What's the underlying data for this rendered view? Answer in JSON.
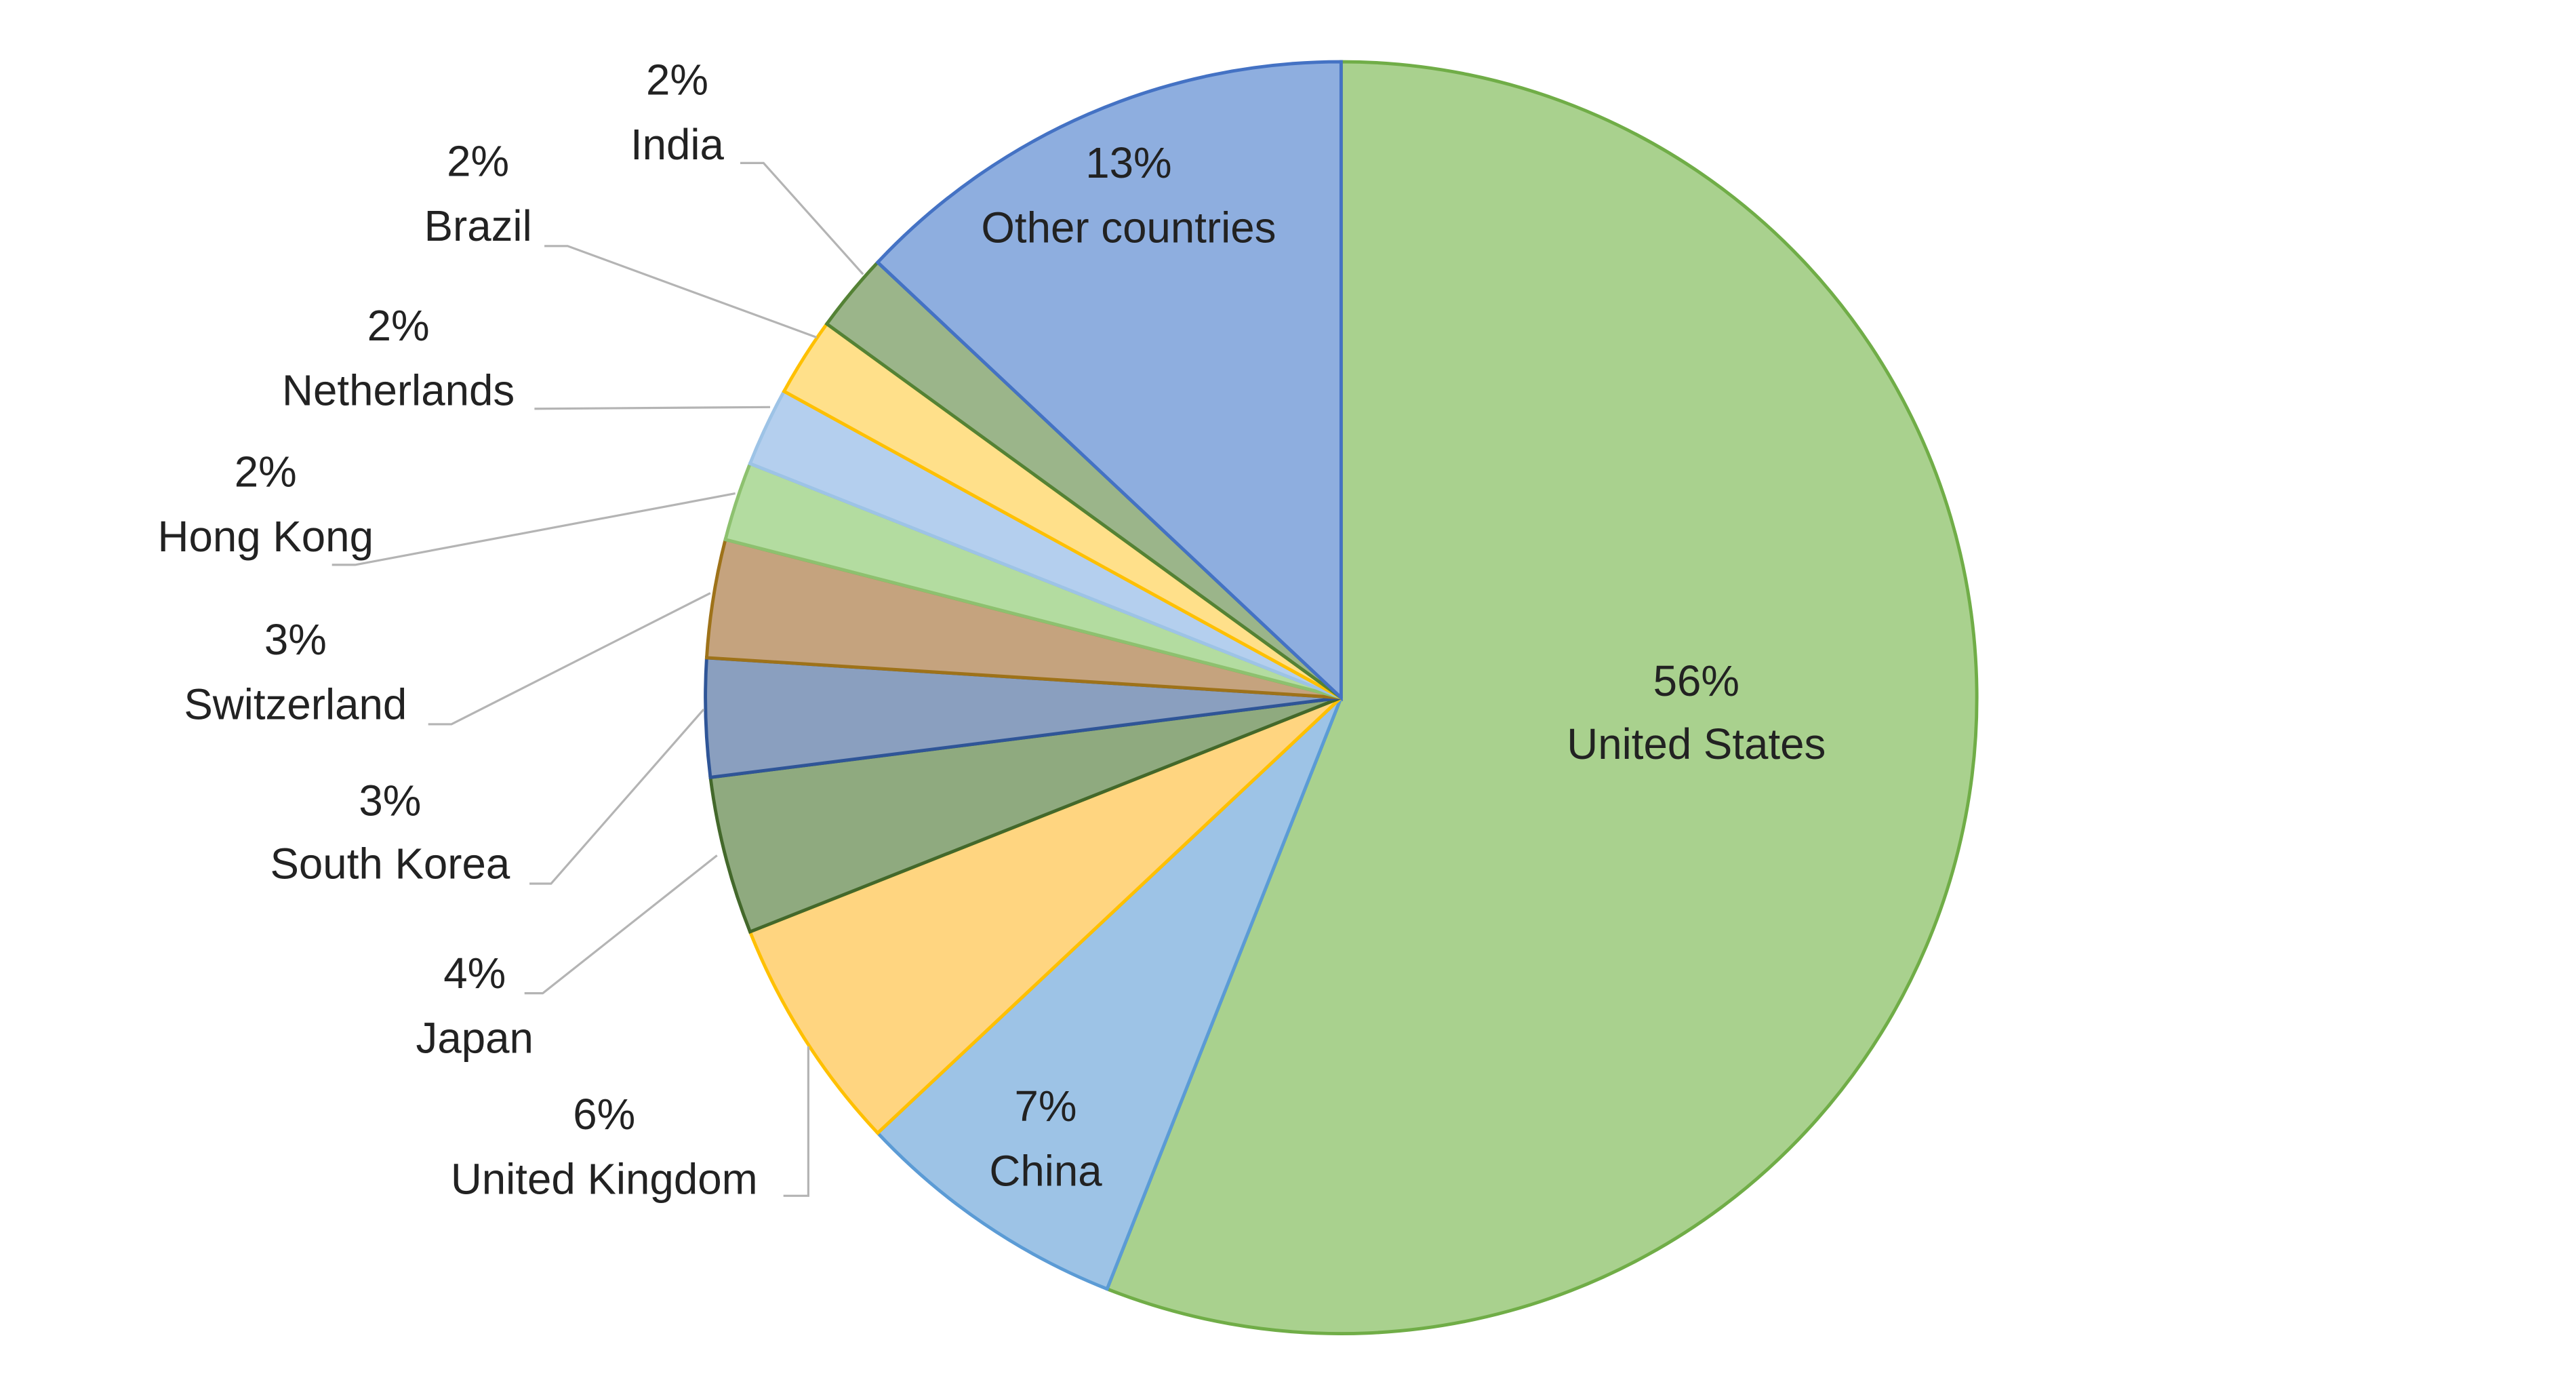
{
  "chart_data": {
    "type": "pie",
    "categories": [
      "United States",
      "China",
      "United Kingdom",
      "Japan",
      "South Korea",
      "Switzerland",
      "Hong Kong",
      "Netherlands",
      "Brazil",
      "India",
      "Other countries"
    ],
    "values": [
      56,
      7,
      6,
      4,
      3,
      3,
      2,
      2,
      2,
      2,
      13
    ],
    "value_labels": [
      "56%",
      "7%",
      "6%",
      "4%",
      "3%",
      "3%",
      "2%",
      "2%",
      "2%",
      "2%",
      "13%"
    ],
    "colors": [
      "#a9d18e",
      "#9dc3e6",
      "#ffd580",
      "#8faa7f",
      "#8a9fbf",
      "#c5a37e",
      "#b3dca0",
      "#b4cfee",
      "#ffe08a",
      "#9bb58a",
      "#8eaedf"
    ]
  }
}
